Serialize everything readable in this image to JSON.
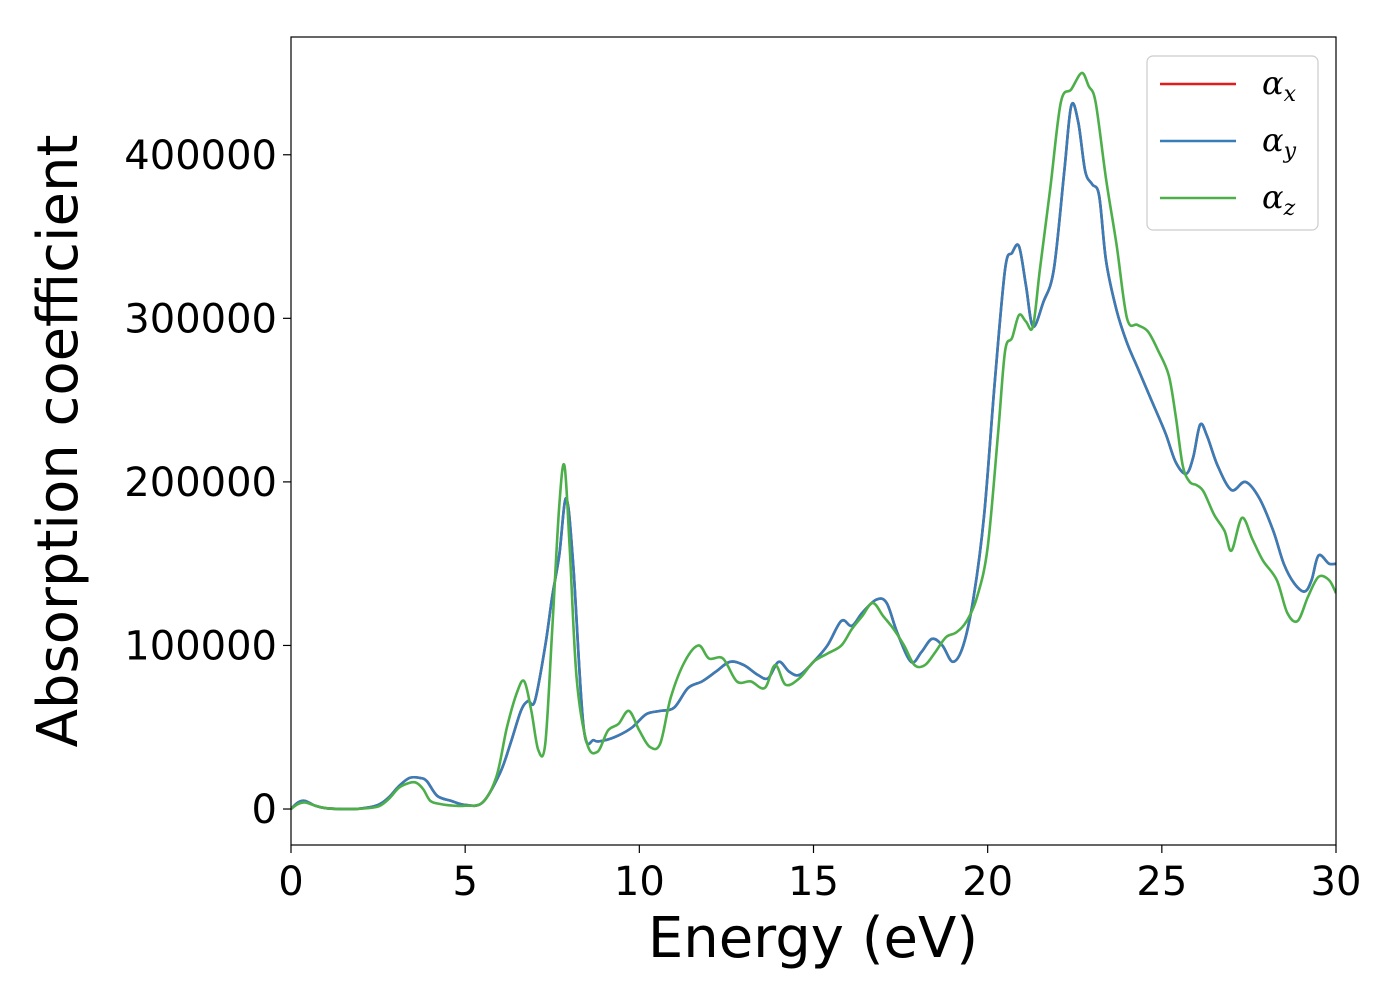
{
  "chart_data": {
    "type": "line",
    "title": "",
    "xlabel": "Energy (eV)",
    "ylabel": "Absorption coefficient",
    "xlim": [
      0,
      30
    ],
    "ylim": [
      -22000,
      472000
    ],
    "xticks": [
      0,
      5,
      10,
      15,
      20,
      25,
      30
    ],
    "xtick_labels": [
      "0",
      "5",
      "10",
      "15",
      "20",
      "25",
      "30"
    ],
    "yticks": [
      0,
      100000,
      200000,
      300000,
      400000
    ],
    "ytick_labels": [
      "0",
      "100000",
      "200000",
      "300000",
      "400000"
    ],
    "grid": false,
    "legend_position": "top-right",
    "series": [
      {
        "name": "α",
        "subscript": "x",
        "color": "#e41a1c",
        "x": [
          0,
          0.2,
          0.4,
          0.7,
          1.0,
          1.5,
          2.0,
          2.5,
          2.8,
          3.1,
          3.4,
          3.7,
          3.9,
          4.2,
          4.6,
          5.0,
          5.5,
          6.0,
          6.3,
          6.6,
          6.8,
          7.0,
          7.3,
          7.5,
          7.7,
          7.9,
          8.1,
          8.4,
          8.7,
          9.0,
          9.4,
          9.8,
          10.2,
          10.6,
          11.0,
          11.4,
          11.8,
          12.2,
          12.6,
          13.0,
          13.4,
          13.7,
          14.0,
          14.3,
          14.6,
          15.0,
          15.4,
          15.8,
          16.1,
          16.4,
          16.8,
          17.1,
          17.4,
          17.8,
          18.1,
          18.4,
          18.7,
          19.0,
          19.3,
          19.6,
          19.9,
          20.2,
          20.5,
          20.7,
          20.9,
          21.1,
          21.3,
          21.6,
          21.9,
          22.2,
          22.4,
          22.6,
          22.8,
          23.0,
          23.2,
          23.4,
          23.7,
          24.0,
          24.3,
          24.7,
          25.1,
          25.4,
          25.7,
          25.9,
          26.1,
          26.3,
          26.6,
          27.0,
          27.4,
          27.8,
          28.2,
          28.5,
          28.8,
          29.1,
          29.3,
          29.5,
          29.8,
          30.0
        ],
        "y": [
          0,
          4000,
          5000,
          2000,
          500,
          0,
          300,
          2500,
          7000,
          14000,
          19000,
          19000,
          17000,
          8000,
          5000,
          2500,
          4000,
          22000,
          40000,
          60000,
          66000,
          66000,
          100000,
          130000,
          155000,
          190000,
          150000,
          50000,
          42000,
          42000,
          45000,
          50000,
          58000,
          60000,
          62000,
          74000,
          78000,
          84000,
          90000,
          88000,
          82000,
          80000,
          90000,
          84000,
          82000,
          90000,
          100000,
          115000,
          112000,
          120000,
          128000,
          126000,
          108000,
          90000,
          96000,
          104000,
          100000,
          90000,
          100000,
          130000,
          180000,
          260000,
          330000,
          340000,
          344000,
          320000,
          295000,
          310000,
          330000,
          390000,
          430000,
          420000,
          390000,
          382000,
          375000,
          335000,
          305000,
          285000,
          270000,
          250000,
          230000,
          212000,
          205000,
          215000,
          235000,
          228000,
          210000,
          195000,
          200000,
          190000,
          170000,
          150000,
          138000,
          133000,
          140000,
          155000,
          150000,
          150000
        ]
      },
      {
        "name": "α",
        "subscript": "y",
        "color": "#377eb8",
        "x": [
          0,
          0.2,
          0.4,
          0.7,
          1.0,
          1.5,
          2.0,
          2.5,
          2.8,
          3.1,
          3.4,
          3.7,
          3.9,
          4.2,
          4.6,
          5.0,
          5.5,
          6.0,
          6.3,
          6.6,
          6.8,
          7.0,
          7.3,
          7.5,
          7.7,
          7.9,
          8.1,
          8.4,
          8.7,
          9.0,
          9.4,
          9.8,
          10.2,
          10.6,
          11.0,
          11.4,
          11.8,
          12.2,
          12.6,
          13.0,
          13.4,
          13.7,
          14.0,
          14.3,
          14.6,
          15.0,
          15.4,
          15.8,
          16.1,
          16.4,
          16.8,
          17.1,
          17.4,
          17.8,
          18.1,
          18.4,
          18.7,
          19.0,
          19.3,
          19.6,
          19.9,
          20.2,
          20.5,
          20.7,
          20.9,
          21.1,
          21.3,
          21.6,
          21.9,
          22.2,
          22.4,
          22.6,
          22.8,
          23.0,
          23.2,
          23.4,
          23.7,
          24.0,
          24.3,
          24.7,
          25.1,
          25.4,
          25.7,
          25.9,
          26.1,
          26.3,
          26.6,
          27.0,
          27.4,
          27.8,
          28.2,
          28.5,
          28.8,
          29.1,
          29.3,
          29.5,
          29.8,
          30.0
        ],
        "y": [
          0,
          4000,
          5000,
          2000,
          500,
          0,
          300,
          2500,
          7000,
          14000,
          19000,
          19000,
          17000,
          8000,
          5000,
          2500,
          4000,
          22000,
          40000,
          60000,
          66000,
          66000,
          100000,
          130000,
          155000,
          190000,
          150000,
          50000,
          42000,
          42000,
          45000,
          50000,
          58000,
          60000,
          62000,
          74000,
          78000,
          84000,
          90000,
          88000,
          82000,
          80000,
          90000,
          84000,
          82000,
          90000,
          100000,
          115000,
          112000,
          120000,
          128000,
          126000,
          108000,
          90000,
          96000,
          104000,
          100000,
          90000,
          100000,
          130000,
          180000,
          260000,
          330000,
          340000,
          344000,
          320000,
          295000,
          310000,
          330000,
          390000,
          430000,
          420000,
          390000,
          382000,
          375000,
          335000,
          305000,
          285000,
          270000,
          250000,
          230000,
          212000,
          205000,
          215000,
          235000,
          228000,
          210000,
          195000,
          200000,
          190000,
          170000,
          150000,
          138000,
          133000,
          140000,
          155000,
          150000,
          150000
        ]
      },
      {
        "name": "α",
        "subscript": "z",
        "color": "#4daf4a",
        "x": [
          0,
          0.2,
          0.4,
          0.7,
          1.0,
          1.5,
          2.0,
          2.5,
          2.8,
          3.1,
          3.4,
          3.6,
          3.8,
          4.0,
          4.3,
          4.7,
          5.0,
          5.5,
          5.9,
          6.2,
          6.5,
          6.7,
          6.9,
          7.1,
          7.3,
          7.5,
          7.7,
          7.85,
          8.0,
          8.2,
          8.5,
          8.8,
          9.1,
          9.4,
          9.7,
          10.0,
          10.3,
          10.6,
          10.9,
          11.3,
          11.7,
          12.0,
          12.4,
          12.8,
          13.2,
          13.6,
          13.9,
          14.2,
          14.6,
          15.0,
          15.4,
          15.8,
          16.1,
          16.4,
          16.7,
          17.0,
          17.3,
          17.6,
          17.9,
          18.2,
          18.5,
          18.8,
          19.1,
          19.4,
          19.7,
          20.0,
          20.3,
          20.5,
          20.7,
          20.9,
          21.1,
          21.3,
          21.5,
          21.8,
          22.1,
          22.4,
          22.7,
          22.9,
          23.1,
          23.4,
          23.7,
          24.0,
          24.3,
          24.6,
          24.9,
          25.2,
          25.4,
          25.6,
          25.8,
          26.0,
          26.2,
          26.5,
          26.8,
          27.0,
          27.3,
          27.6,
          27.9,
          28.3,
          28.6,
          28.9,
          29.2,
          29.5,
          29.8,
          30.0
        ],
        "y": [
          0,
          3000,
          4000,
          2000,
          500,
          0,
          200,
          1500,
          6000,
          13000,
          16000,
          16000,
          12000,
          5000,
          3000,
          2000,
          2000,
          4000,
          20000,
          50000,
          72000,
          78000,
          60000,
          36000,
          40000,
          110000,
          185000,
          210000,
          160000,
          80000,
          40000,
          35000,
          48000,
          52000,
          60000,
          48000,
          38000,
          40000,
          68000,
          90000,
          100000,
          92000,
          92000,
          78000,
          78000,
          74000,
          88000,
          76000,
          80000,
          90000,
          95000,
          100000,
          110000,
          118000,
          126000,
          118000,
          110000,
          100000,
          88000,
          88000,
          96000,
          105000,
          108000,
          115000,
          130000,
          160000,
          230000,
          280000,
          288000,
          302000,
          298000,
          295000,
          330000,
          380000,
          432000,
          440000,
          450000,
          442000,
          432000,
          385000,
          345000,
          300000,
          296000,
          292000,
          280000,
          265000,
          240000,
          210000,
          200000,
          198000,
          194000,
          180000,
          170000,
          158000,
          178000,
          165000,
          152000,
          140000,
          120000,
          115000,
          130000,
          142000,
          140000,
          132000
        ]
      }
    ]
  }
}
